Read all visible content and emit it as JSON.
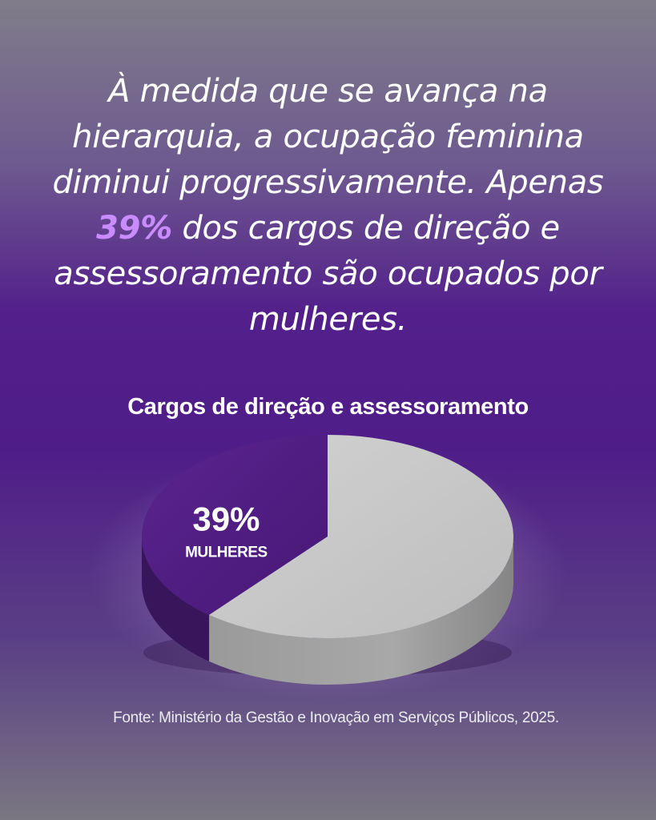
{
  "headline": {
    "before": "À medida que se avança na hierarquia, a ocupação feminina diminui progressivamente. Apenas ",
    "highlight": "39%",
    "after": " dos cargos de direção e assessoramento são ocupados por mulheres."
  },
  "chart_data": {
    "type": "pie",
    "title": "Cargos de direção e assessoramento",
    "slices": [
      {
        "label": "MULHERES",
        "value": 39,
        "value_label": "39%",
        "color": "#4f1d80"
      },
      {
        "label": "",
        "value": 61,
        "value_label": "",
        "color": "#c6c6c6"
      }
    ]
  },
  "source": "Fonte: Ministério da Gestão e Inovação em Serviços Públicos, 2025."
}
